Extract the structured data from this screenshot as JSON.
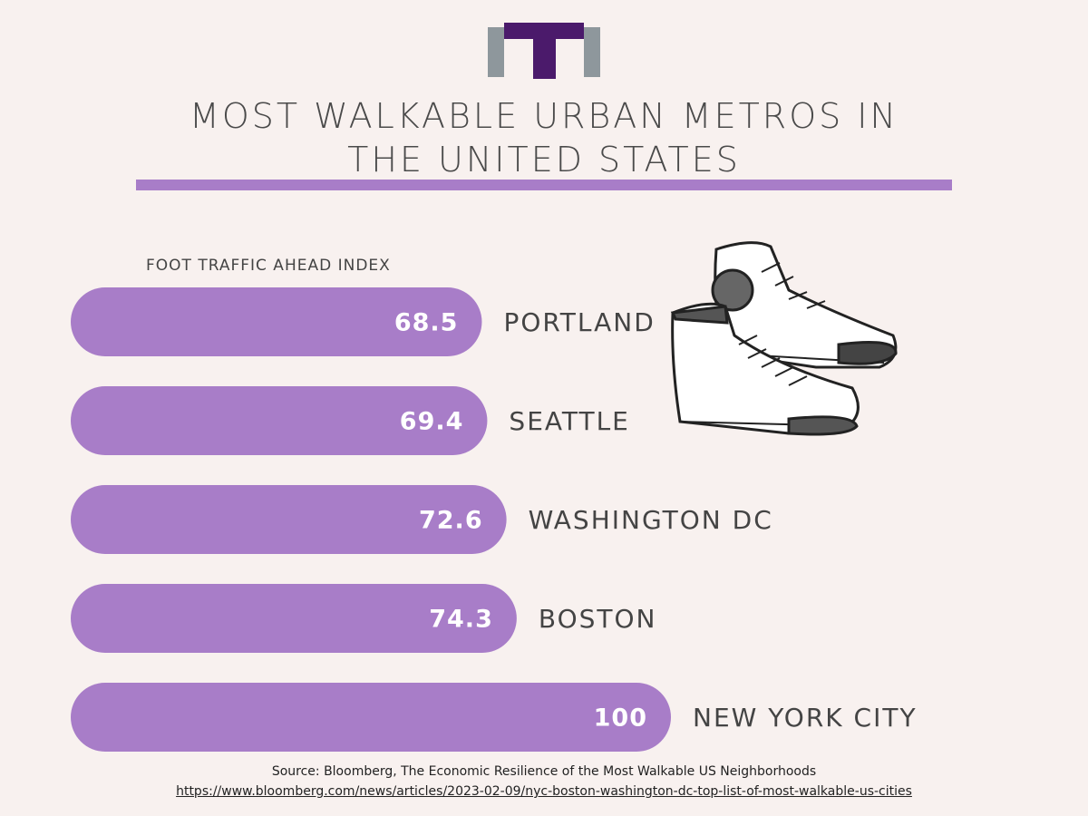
{
  "chart_data": {
    "type": "bar",
    "orientation": "horizontal",
    "title": "MOST WALKABLE URBAN METROS IN THE UNITED STATES",
    "subtitle": "FOOT TRAFFIC AHEAD INDEX",
    "categories": [
      "PORTLAND",
      "SEATTLE",
      "WASHINGTON DC",
      "BOSTON",
      "NEW YORK CITY"
    ],
    "values": [
      68.5,
      69.4,
      72.6,
      74.3,
      100
    ],
    "color": "#a87dc8",
    "source": "Source: Bloomberg, The Economic Resilience of the Most Walkable US Neighborhoods",
    "source_url": "https://www.bloomberg.com/news/articles/2023-02-09/nyc-boston-washington-dc-top-list-of-most-walkable-us-cities"
  }
}
